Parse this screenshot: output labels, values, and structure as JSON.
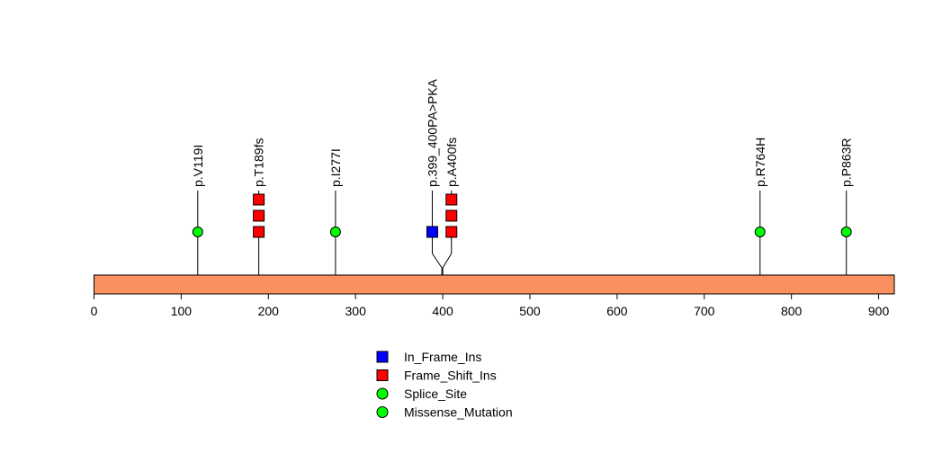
{
  "chart_data": {
    "type": "lollipop",
    "protein_length": 918,
    "xlim": [
      0,
      918
    ],
    "bar_color": "#FA9060",
    "ticks": [
      0,
      100,
      200,
      300,
      400,
      500,
      600,
      700,
      800,
      900
    ],
    "tick_labels": [
      "0",
      "100",
      "200",
      "300",
      "400",
      "500",
      "600",
      "700",
      "800",
      "900"
    ],
    "mutations": [
      {
        "label": "p.V119I",
        "position": 119,
        "type": "Missense_Mutation",
        "count": 1,
        "stem_x": 119
      },
      {
        "label": "p.T189fs",
        "position": 189,
        "type": "Frame_Shift_Ins",
        "count": 3,
        "stem_x": 189
      },
      {
        "label": "p.I277I",
        "position": 277,
        "type": "Splice_Site",
        "count": 1,
        "stem_x": 277
      },
      {
        "label": "p.399_400PA>PKA",
        "position": 399,
        "type": "In_Frame_Ins",
        "count": 1,
        "stem_x": 388
      },
      {
        "label": "p.A400fs",
        "position": 400,
        "type": "Frame_Shift_Ins",
        "count": 3,
        "stem_x": 410
      },
      {
        "label": "p.R764H",
        "position": 764,
        "type": "Missense_Mutation",
        "count": 1,
        "stem_x": 764
      },
      {
        "label": "p.P863R",
        "position": 863,
        "type": "Missense_Mutation",
        "count": 1,
        "stem_x": 863
      }
    ],
    "legend": [
      {
        "label": "In_Frame_Ins",
        "shape": "square",
        "color": "#0000FF"
      },
      {
        "label": "Frame_Shift_Ins",
        "shape": "square",
        "color": "#FF0000"
      },
      {
        "label": "Splice_Site",
        "shape": "circle",
        "color": "#00FF00"
      },
      {
        "label": "Missense_Mutation",
        "shape": "circle",
        "color": "#00FF00"
      }
    ]
  }
}
